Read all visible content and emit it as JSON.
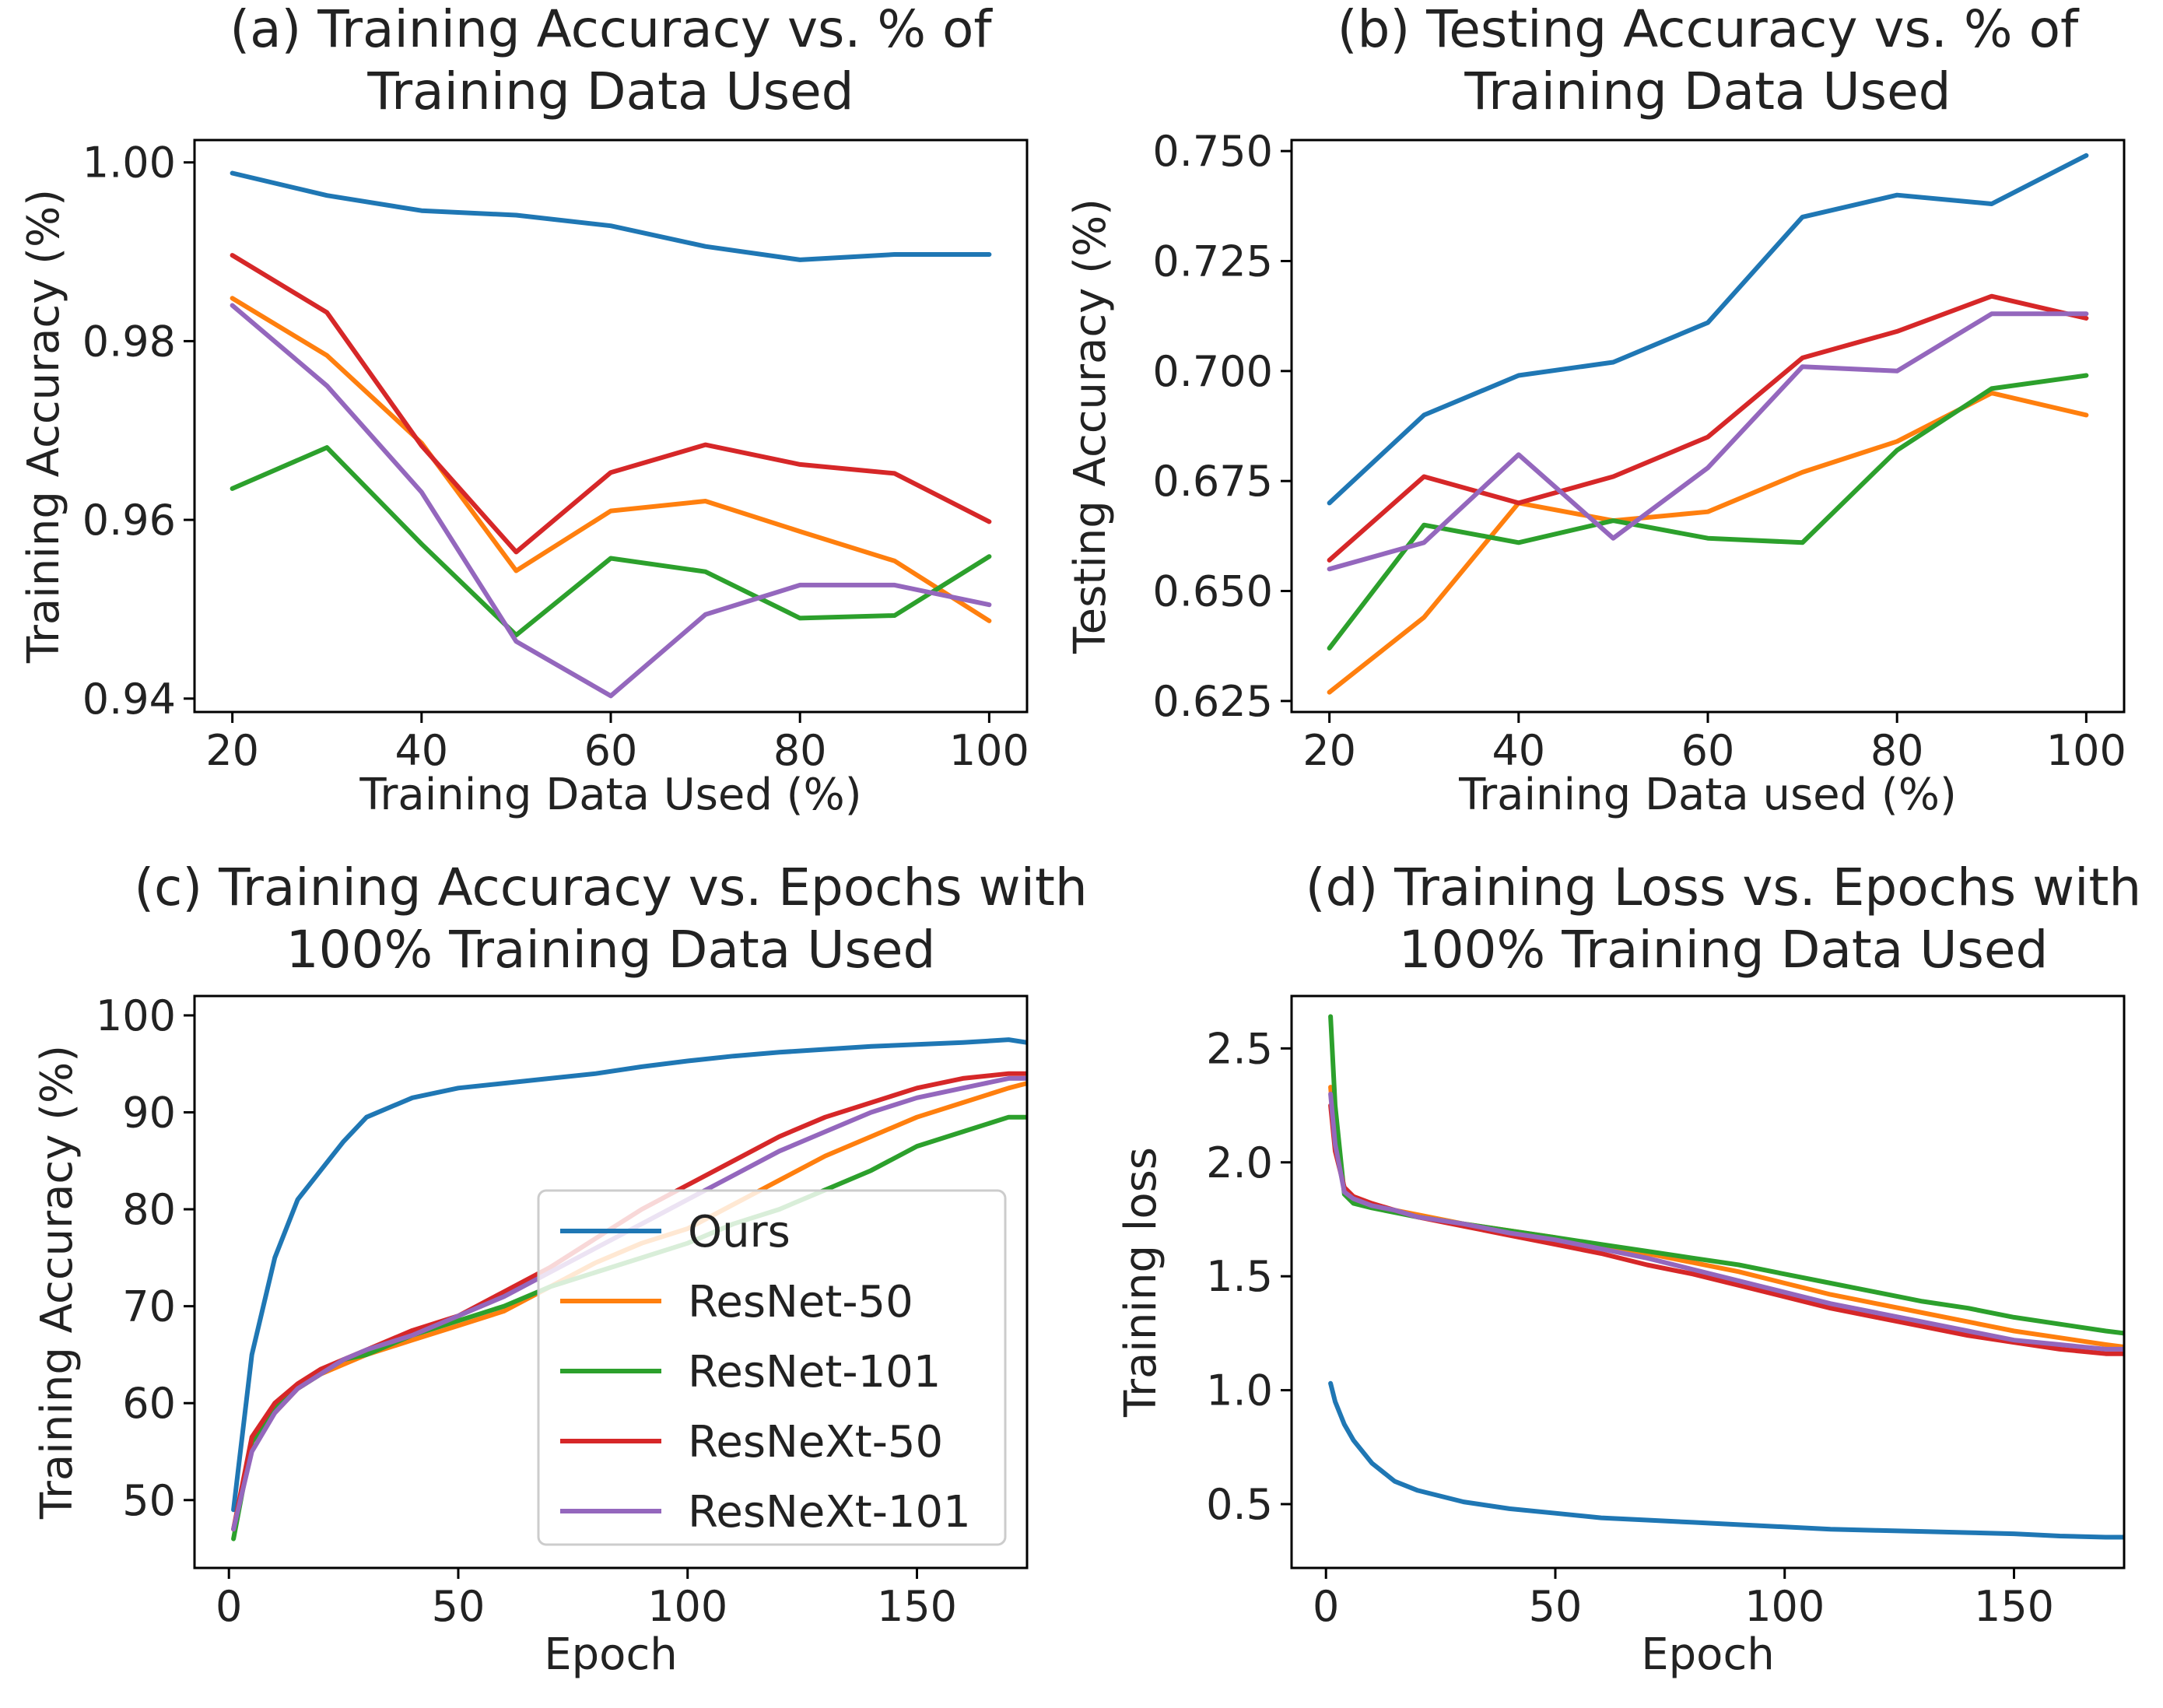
{
  "series_colors": {
    "Ours": "#1f77b4",
    "ResNet-50": "#ff7f0e",
    "ResNet-101": "#2ca02c",
    "ResNeXt-50": "#d62728",
    "ResNeXt-101": "#9467bd"
  },
  "chart_data": [
    {
      "type": "line",
      "title_line1": "(a) Training Accuracy vs. % of",
      "title_line2": "Training Data Used",
      "xlabel": "Training Data Used (%)",
      "ylabel": "Training Accuracy (%)",
      "xlim": [
        16,
        104
      ],
      "ylim": [
        0.9385,
        1.0025
      ],
      "xticks": [
        20,
        40,
        60,
        80,
        100
      ],
      "xtick_labels": [
        "20",
        "40",
        "60",
        "80",
        "100"
      ],
      "yticks": [
        0.94,
        0.96,
        0.98,
        1.0
      ],
      "ytick_labels": [
        "0.94",
        "0.96",
        "0.98",
        "1.00"
      ],
      "x": [
        20,
        30,
        40,
        50,
        60,
        70,
        80,
        90,
        100
      ],
      "series": [
        {
          "name": "Ours",
          "values": [
            0.9988,
            0.9963,
            0.9946,
            0.9941,
            0.9929,
            0.9906,
            0.9891,
            0.9897,
            0.9897
          ]
        },
        {
          "name": "ResNet-50",
          "values": [
            0.9848,
            0.9784,
            0.9686,
            0.9543,
            0.961,
            0.9621,
            0.9587,
            0.9554,
            0.9487
          ]
        },
        {
          "name": "ResNet-101",
          "values": [
            0.9635,
            0.9681,
            0.9573,
            0.9471,
            0.9557,
            0.9542,
            0.949,
            0.9493,
            0.9559
          ]
        },
        {
          "name": "ResNeXt-50",
          "values": [
            0.9896,
            0.9832,
            0.9683,
            0.9564,
            0.9653,
            0.9684,
            0.9662,
            0.9652,
            0.9598
          ]
        },
        {
          "name": "ResNeXt-101",
          "values": [
            0.984,
            0.975,
            0.9631,
            0.9464,
            0.9403,
            0.9494,
            0.9527,
            0.9527,
            0.9505
          ]
        }
      ]
    },
    {
      "type": "line",
      "title_line1": "(b) Testing Accuracy vs. % of",
      "title_line2": "Training Data Used",
      "xlabel": "Training Data used (%)",
      "ylabel": "Testing Accuracy (%)",
      "xlim": [
        16,
        104
      ],
      "ylim": [
        0.6225,
        0.7525
      ],
      "xticks": [
        20,
        40,
        60,
        80,
        100
      ],
      "xtick_labels": [
        "20",
        "40",
        "60",
        "80",
        "100"
      ],
      "yticks": [
        0.625,
        0.65,
        0.675,
        0.7,
        0.725,
        0.75
      ],
      "ytick_labels": [
        "0.625",
        "0.650",
        "0.675",
        "0.700",
        "0.725",
        "0.750"
      ],
      "x": [
        20,
        30,
        40,
        50,
        60,
        70,
        80,
        90,
        100
      ],
      "series": [
        {
          "name": "Ours",
          "values": [
            0.67,
            0.69,
            0.699,
            0.702,
            0.711,
            0.735,
            0.74,
            0.738,
            0.749
          ]
        },
        {
          "name": "ResNet-50",
          "values": [
            0.627,
            0.644,
            0.67,
            0.666,
            0.668,
            0.677,
            0.684,
            0.695,
            0.69
          ]
        },
        {
          "name": "ResNet-101",
          "values": [
            0.637,
            0.665,
            0.661,
            0.666,
            0.662,
            0.661,
            0.682,
            0.696,
            0.699
          ]
        },
        {
          "name": "ResNeXt-50",
          "values": [
            0.657,
            0.676,
            0.67,
            0.676,
            0.685,
            0.703,
            0.709,
            0.717,
            0.712
          ]
        },
        {
          "name": "ResNeXt-101",
          "values": [
            0.655,
            0.661,
            0.681,
            0.662,
            0.678,
            0.701,
            0.7,
            0.713,
            0.713
          ]
        }
      ]
    },
    {
      "type": "line",
      "title_line1": "(c) Training Accuracy vs. Epochs with",
      "title_line2": "100% Training Data Used",
      "xlabel": "Epoch",
      "ylabel": "Training Accuracy (%)",
      "xlim": [
        -7.5,
        174
      ],
      "ylim": [
        43,
        102
      ],
      "xticks": [
        0,
        50,
        100,
        150
      ],
      "xtick_labels": [
        "0",
        "50",
        "100",
        "150"
      ],
      "yticks": [
        50,
        60,
        70,
        80,
        90,
        100
      ],
      "ytick_labels": [
        "50",
        "60",
        "70",
        "80",
        "90",
        "100"
      ],
      "legend": {
        "position": "lower-right",
        "entries": [
          "Ours",
          "ResNet-50",
          "ResNet-101",
          "ResNeXt-50",
          "ResNeXt-101"
        ]
      },
      "x": [
        1,
        5,
        10,
        15,
        20,
        25,
        30,
        40,
        50,
        60,
        70,
        80,
        90,
        100,
        110,
        120,
        130,
        140,
        150,
        160,
        170,
        174
      ],
      "series": [
        {
          "name": "Ours",
          "values": [
            49,
            65,
            75,
            81,
            84,
            87,
            89.5,
            91.5,
            92.5,
            93,
            93.5,
            94,
            94.7,
            95.3,
            95.8,
            96.2,
            96.5,
            96.8,
            97,
            97.2,
            97.5,
            97.2
          ]
        },
        {
          "name": "ResNet-50",
          "values": [
            47,
            56,
            59,
            61.5,
            63,
            64,
            65,
            66.5,
            68,
            69.5,
            72,
            74.5,
            76.5,
            78,
            80.5,
            83,
            85.5,
            87.5,
            89.5,
            91,
            92.5,
            93
          ]
        },
        {
          "name": "ResNet-101",
          "values": [
            46,
            56,
            59.5,
            61.5,
            63,
            64.5,
            65,
            67,
            68.5,
            70,
            72,
            73.5,
            75,
            76.5,
            78.5,
            80,
            82,
            84,
            86.5,
            88,
            89.5,
            89.5
          ]
        },
        {
          "name": "ResNeXt-50",
          "values": [
            47,
            56.5,
            60,
            62,
            63.5,
            64.5,
            65.5,
            67.5,
            69,
            71.5,
            74,
            77,
            80,
            82.5,
            85,
            87.5,
            89.5,
            91,
            92.5,
            93.5,
            94,
            94
          ]
        },
        {
          "name": "ResNeXt-101",
          "values": [
            47,
            55,
            59,
            61.5,
            63,
            64.5,
            65.5,
            67,
            69,
            71,
            73.5,
            76,
            78.5,
            81,
            83.5,
            86,
            88,
            90,
            91.5,
            92.5,
            93.5,
            93.5
          ]
        }
      ]
    },
    {
      "type": "line",
      "title_line1": "(d) Training Loss vs. Epochs with",
      "title_line2": "100% Training Data Used",
      "xlabel": "Epoch",
      "ylabel": "Training loss",
      "xlim": [
        -7.5,
        174
      ],
      "ylim": [
        0.22,
        2.73
      ],
      "xticks": [
        0,
        50,
        100,
        150
      ],
      "xtick_labels": [
        "0",
        "50",
        "100",
        "150"
      ],
      "yticks": [
        0.5,
        1.0,
        1.5,
        2.0,
        2.5
      ],
      "ytick_labels": [
        "0.5",
        "1.0",
        "1.5",
        "2.0",
        "2.5"
      ],
      "x": [
        1,
        2,
        4,
        6,
        10,
        15,
        20,
        30,
        40,
        50,
        60,
        70,
        80,
        90,
        100,
        110,
        120,
        130,
        140,
        150,
        160,
        170,
        174
      ],
      "series": [
        {
          "name": "Ours",
          "values": [
            1.03,
            0.95,
            0.85,
            0.78,
            0.68,
            0.6,
            0.56,
            0.51,
            0.48,
            0.46,
            0.44,
            0.43,
            0.42,
            0.41,
            0.4,
            0.39,
            0.385,
            0.38,
            0.375,
            0.37,
            0.36,
            0.355,
            0.355
          ]
        },
        {
          "name": "ResNet-50",
          "values": [
            2.33,
            2.1,
            1.88,
            1.84,
            1.81,
            1.79,
            1.77,
            1.73,
            1.7,
            1.67,
            1.63,
            1.6,
            1.56,
            1.52,
            1.47,
            1.42,
            1.38,
            1.34,
            1.3,
            1.26,
            1.23,
            1.2,
            1.19
          ]
        },
        {
          "name": "ResNet-101",
          "values": [
            2.64,
            2.25,
            1.86,
            1.82,
            1.8,
            1.78,
            1.76,
            1.73,
            1.7,
            1.67,
            1.64,
            1.61,
            1.58,
            1.55,
            1.51,
            1.47,
            1.43,
            1.39,
            1.36,
            1.32,
            1.29,
            1.26,
            1.25
          ]
        },
        {
          "name": "ResNeXt-50",
          "values": [
            2.25,
            2.05,
            1.89,
            1.85,
            1.82,
            1.79,
            1.76,
            1.72,
            1.68,
            1.64,
            1.6,
            1.55,
            1.51,
            1.46,
            1.41,
            1.36,
            1.32,
            1.28,
            1.24,
            1.21,
            1.18,
            1.16,
            1.16
          ]
        },
        {
          "name": "ResNeXt-101",
          "values": [
            2.3,
            2.08,
            1.87,
            1.84,
            1.81,
            1.79,
            1.76,
            1.73,
            1.69,
            1.66,
            1.62,
            1.58,
            1.53,
            1.48,
            1.43,
            1.38,
            1.34,
            1.3,
            1.26,
            1.22,
            1.2,
            1.18,
            1.18
          ]
        }
      ]
    }
  ]
}
